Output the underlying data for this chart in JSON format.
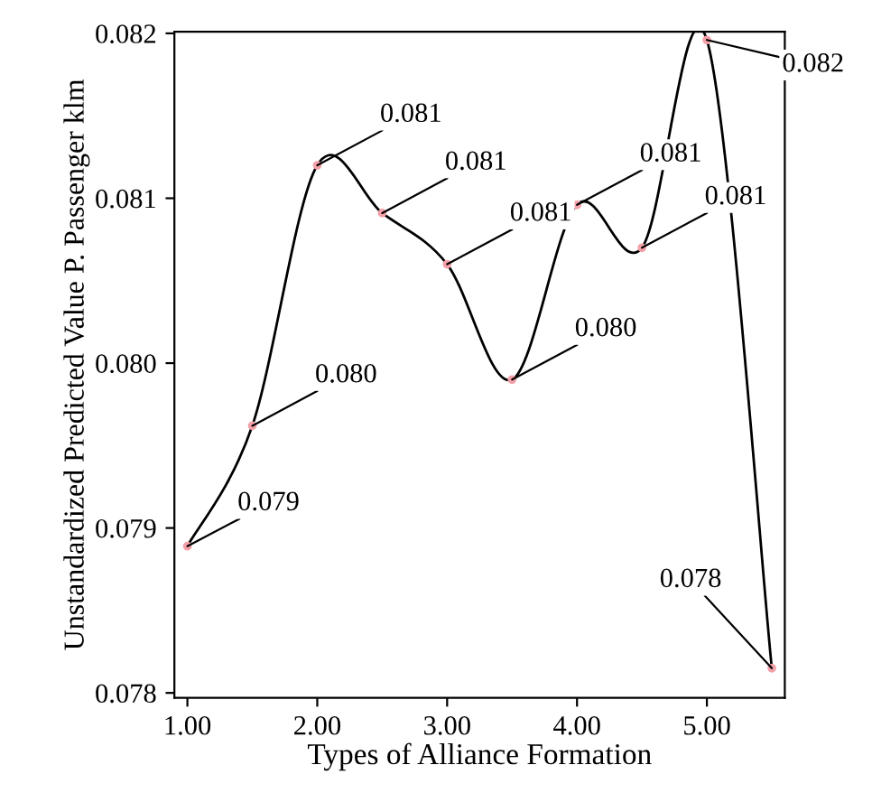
{
  "chart_data": {
    "type": "line",
    "xlabel": "Types of Alliance Formation",
    "ylabel": "Unstandardized Predicted Value P. Passenger klm",
    "x": [
      1.0,
      1.5,
      2.0,
      2.5,
      3.0,
      3.5,
      4.0,
      4.5,
      5.0,
      5.5
    ],
    "series": [
      {
        "color": "#000000",
        "values": [
          0.07889,
          0.07962,
          0.0812,
          0.08091,
          0.0806,
          0.0799,
          0.08096,
          0.0807,
          0.08196,
          0.07815
        ],
        "value_labels": [
          "0.079",
          "0.080",
          "0.081",
          "0.081",
          "0.081",
          "0.080",
          "0.081",
          "0.081",
          "0.082",
          "0.078"
        ]
      }
    ],
    "marker": "circle",
    "xlim": [
      0.9,
      5.6
    ],
    "xticks": [
      {
        "value": 1,
        "label": "1.00"
      },
      {
        "value": 2,
        "label": "2.00"
      },
      {
        "value": 3,
        "label": "3.00"
      },
      {
        "value": 4,
        "label": "4.00"
      },
      {
        "value": 5,
        "label": "5.00"
      }
    ],
    "ylim": [
      0.07797,
      0.08201
    ],
    "yticks": [
      {
        "value": 0.078,
        "label": "0.078"
      },
      {
        "value": 0.079,
        "label": "0.079"
      },
      {
        "value": 0.08,
        "label": "0.080"
      },
      {
        "value": 0.081,
        "label": "0.081"
      },
      {
        "value": 0.082,
        "label": "0.082"
      }
    ],
    "grid": false
  }
}
